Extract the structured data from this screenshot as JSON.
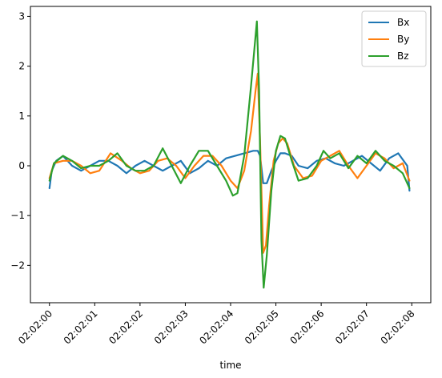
{
  "chart_data": {
    "type": "line",
    "xlabel": "time",
    "ylabel": "",
    "title": "",
    "x_tick_labels": [
      "02:02:00",
      "02:02:01",
      "02:02:02",
      "02:02:03",
      "02:02:04",
      "02:02:05",
      "02:02:06",
      "02:02:07",
      "02:02:08"
    ],
    "x_tick_values": [
      0,
      1,
      2,
      3,
      4,
      5,
      6,
      7,
      8
    ],
    "xlim": [
      -0.42,
      8.42
    ],
    "y_tick_values": [
      -2,
      -1,
      0,
      1,
      2,
      3
    ],
    "y_tick_labels": [
      "−2",
      "−1",
      "0",
      "1",
      "2",
      "3"
    ],
    "ylim": [
      -2.75,
      3.2
    ],
    "grid": false,
    "legend_position": "top-right",
    "series": [
      {
        "name": "Bx",
        "color": "#1f77b4",
        "x": [
          0,
          0.05,
          0.15,
          0.3,
          0.5,
          0.7,
          0.9,
          1.1,
          1.3,
          1.5,
          1.7,
          1.9,
          2.1,
          2.3,
          2.5,
          2.7,
          2.9,
          3.1,
          3.3,
          3.5,
          3.7,
          3.9,
          4.1,
          4.3,
          4.5,
          4.6,
          4.65,
          4.72,
          4.8,
          4.9,
          5.0,
          5.1,
          5.2,
          5.35,
          5.5,
          5.7,
          5.9,
          6.1,
          6.3,
          6.5,
          6.7,
          6.9,
          7.1,
          7.3,
          7.5,
          7.7,
          7.9,
          7.95
        ],
        "y": [
          -0.45,
          -0.1,
          0.1,
          0.2,
          0.0,
          -0.1,
          0.0,
          0.1,
          0.1,
          0.0,
          -0.15,
          0.0,
          0.1,
          0.0,
          -0.1,
          0.0,
          0.1,
          -0.15,
          -0.05,
          0.1,
          0.0,
          0.15,
          0.2,
          0.25,
          0.3,
          0.3,
          0.2,
          -0.35,
          -0.35,
          -0.1,
          0.1,
          0.25,
          0.25,
          0.2,
          0.0,
          -0.05,
          0.1,
          0.15,
          0.05,
          0.0,
          0.1,
          0.2,
          0.05,
          -0.1,
          0.15,
          0.25,
          0.0,
          -0.5
        ]
      },
      {
        "name": "By",
        "color": "#ff7f0e",
        "x": [
          0,
          0.1,
          0.3,
          0.5,
          0.7,
          0.9,
          1.1,
          1.35,
          1.6,
          1.8,
          2.0,
          2.2,
          2.4,
          2.6,
          2.8,
          3.0,
          3.2,
          3.4,
          3.6,
          3.8,
          4.0,
          4.15,
          4.3,
          4.45,
          4.55,
          4.6,
          4.65,
          4.72,
          4.78,
          4.85,
          4.95,
          5.05,
          5.15,
          5.25,
          5.4,
          5.6,
          5.8,
          6.0,
          6.2,
          6.4,
          6.6,
          6.8,
          7.0,
          7.2,
          7.4,
          7.6,
          7.8,
          7.95
        ],
        "y": [
          -0.25,
          0.05,
          0.1,
          0.1,
          0.0,
          -0.15,
          -0.1,
          0.25,
          0.1,
          -0.05,
          -0.15,
          -0.1,
          0.1,
          0.15,
          0.0,
          -0.25,
          0.0,
          0.2,
          0.2,
          0.0,
          -0.3,
          -0.45,
          -0.1,
          0.7,
          1.5,
          1.85,
          0.5,
          -1.75,
          -1.6,
          -0.8,
          0.1,
          0.45,
          0.55,
          0.45,
          0.0,
          -0.25,
          -0.2,
          0.1,
          0.2,
          0.3,
          0.0,
          -0.25,
          0.0,
          0.25,
          0.15,
          -0.05,
          0.05,
          -0.3
        ]
      },
      {
        "name": "Bz",
        "color": "#2ca02c",
        "x": [
          0,
          0.1,
          0.3,
          0.5,
          0.7,
          0.9,
          1.1,
          1.3,
          1.5,
          1.7,
          1.9,
          2.1,
          2.3,
          2.5,
          2.7,
          2.9,
          3.1,
          3.3,
          3.5,
          3.7,
          3.9,
          4.05,
          4.15,
          4.3,
          4.45,
          4.58,
          4.63,
          4.68,
          4.73,
          4.8,
          4.9,
          5.0,
          5.1,
          5.2,
          5.35,
          5.5,
          5.7,
          5.9,
          6.05,
          6.2,
          6.4,
          6.6,
          6.8,
          7.0,
          7.2,
          7.4,
          7.6,
          7.8,
          7.95
        ],
        "y": [
          -0.3,
          0.05,
          0.2,
          0.1,
          -0.05,
          0.0,
          0.0,
          0.1,
          0.25,
          0.0,
          -0.1,
          -0.1,
          0.0,
          0.35,
          0.0,
          -0.35,
          0.0,
          0.3,
          0.3,
          0.0,
          -0.3,
          -0.6,
          -0.55,
          0.2,
          1.6,
          2.9,
          1.5,
          -1.5,
          -2.45,
          -1.8,
          -0.5,
          0.3,
          0.6,
          0.55,
          0.1,
          -0.3,
          -0.25,
          0.0,
          0.3,
          0.15,
          0.25,
          -0.05,
          0.2,
          0.05,
          0.3,
          0.1,
          0.0,
          -0.15,
          -0.45
        ]
      }
    ]
  }
}
